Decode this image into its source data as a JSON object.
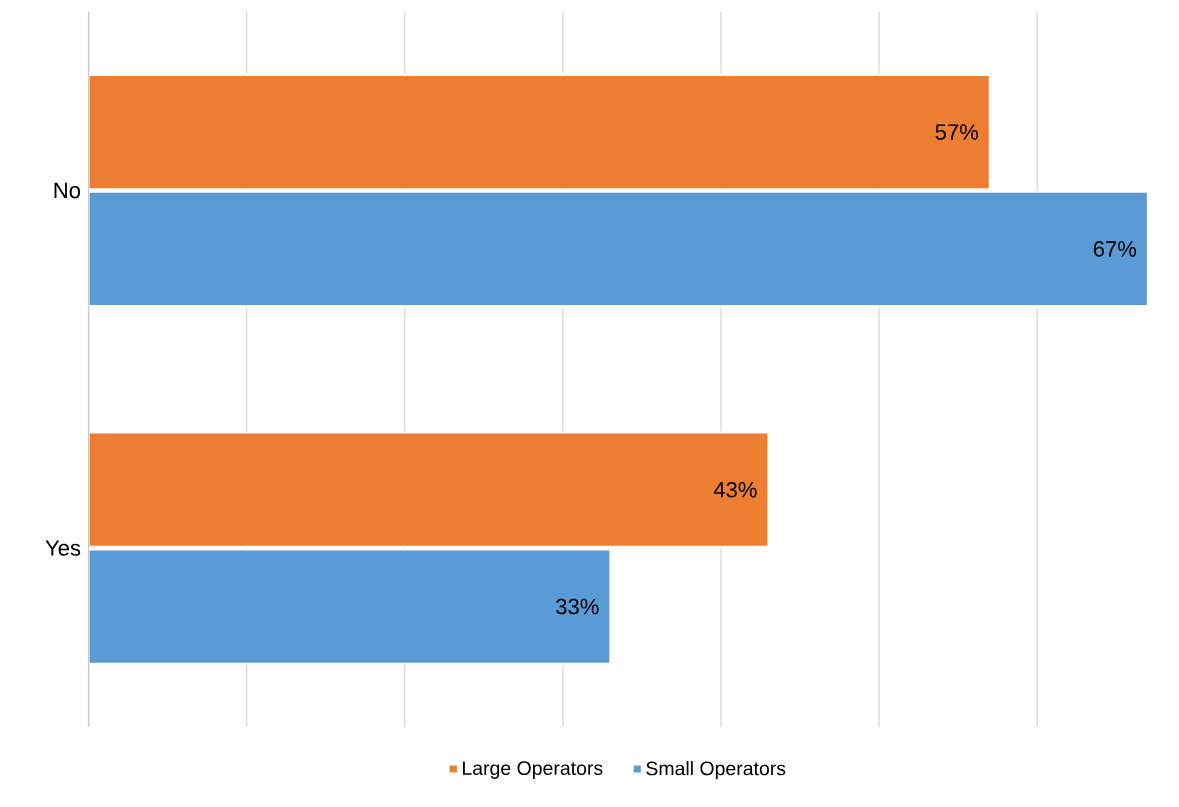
{
  "chart_data": {
    "type": "bar",
    "orientation": "horizontal",
    "categories": [
      "No",
      "Yes"
    ],
    "series": [
      {
        "name": "Large Operators",
        "color": "#ed7d31",
        "values": [
          57,
          43
        ],
        "value_labels": [
          "57%",
          "43%"
        ]
      },
      {
        "name": "Small Operators",
        "color": "#5b9bd5",
        "values": [
          67,
          33
        ],
        "value_labels": [
          "67%",
          "33%"
        ]
      }
    ],
    "xlim": [
      0,
      67
    ],
    "xticks": [
      {
        "value": 0,
        "label": null
      },
      {
        "value": 10,
        "label": null
      },
      {
        "value": 20,
        "label": null
      },
      {
        "value": 30,
        "label": null
      },
      {
        "value": 40,
        "label": null
      },
      {
        "value": 50,
        "label": null
      },
      {
        "value": 60,
        "label": null
      }
    ],
    "grid": "x",
    "legend": "bottom",
    "tick_labels": "y"
  }
}
